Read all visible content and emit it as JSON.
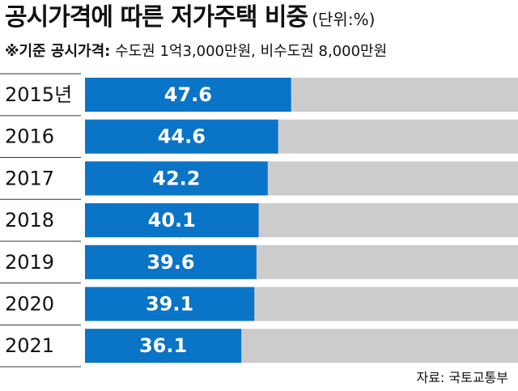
{
  "header": {
    "title": "공시가격에 따른 저가주택 비중",
    "unit": "(단위:%)",
    "subtitle_label": "※기준 공시가격:",
    "subtitle_text": "수도권 1억3,000만원, 비수도권 8,000만원"
  },
  "footer": {
    "source": "자료: 국토교통부"
  },
  "colors": {
    "bar": "#0a74c7",
    "track": "#cccccc",
    "separator": "#333333",
    "value_text": "#ffffff",
    "label_text": "#111111"
  },
  "chart_data": {
    "type": "bar",
    "orientation": "horizontal",
    "title": "공시가격에 따른 저가주택 비중",
    "unit": "(단위:%)",
    "categories": [
      "2015년",
      "2016",
      "2017",
      "2018",
      "2019",
      "2020",
      "2021"
    ],
    "values": [
      47.6,
      44.6,
      42.2,
      40.1,
      39.6,
      39.1,
      36.1
    ],
    "value_labels": [
      "47.6",
      "44.6",
      "42.2",
      "40.1",
      "39.6",
      "39.1",
      "36.1"
    ],
    "xlim": [
      0,
      100
    ],
    "grid": false,
    "legend": "none",
    "data_labels": "inside-bar"
  }
}
